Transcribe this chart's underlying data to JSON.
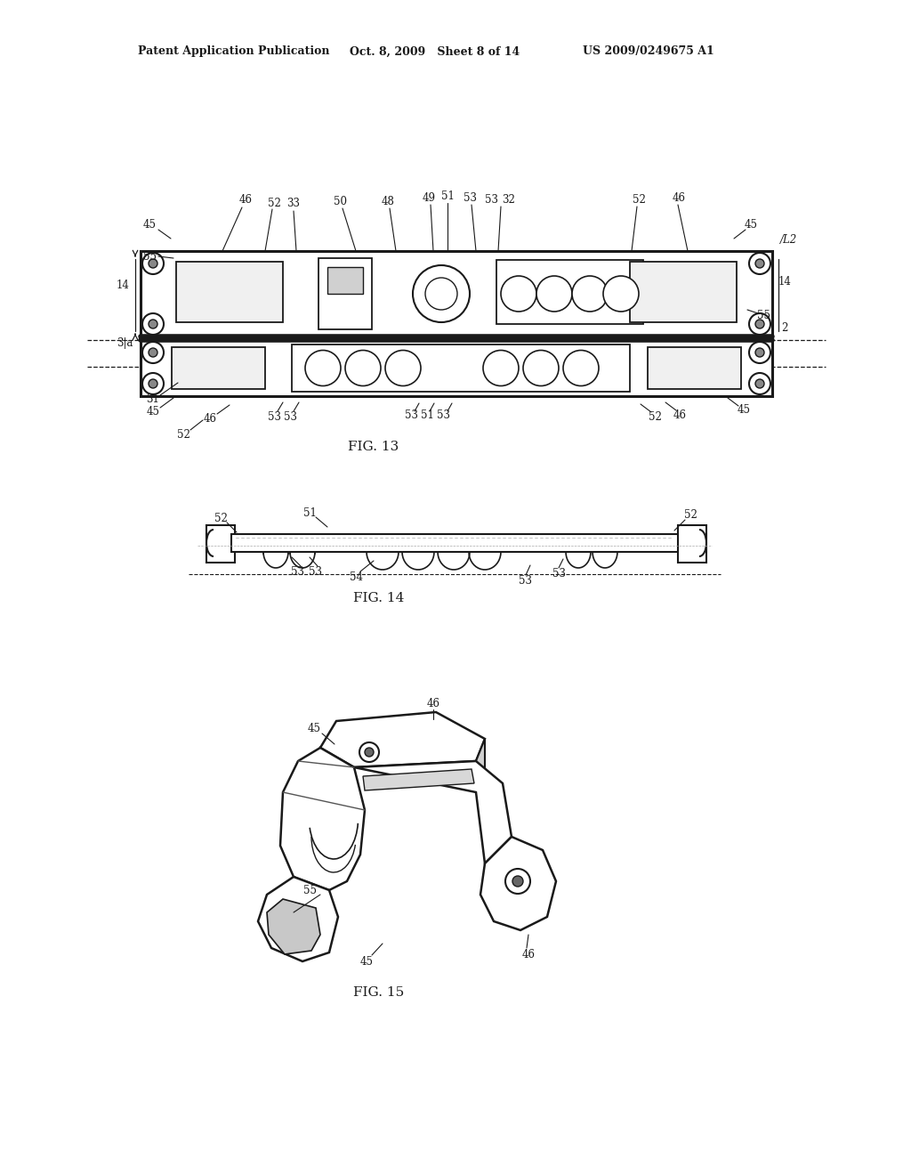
{
  "background_color": "#ffffff",
  "header_left": "Patent Application Publication",
  "header_mid": "Oct. 8, 2009   Sheet 8 of 14",
  "header_right": "US 2009/0249675 A1",
  "fig13_label": "FIG. 13",
  "fig14_label": "FIG. 14",
  "fig15_label": "FIG. 15",
  "line_color": "#1a1a1a",
  "text_color": "#1a1a1a"
}
